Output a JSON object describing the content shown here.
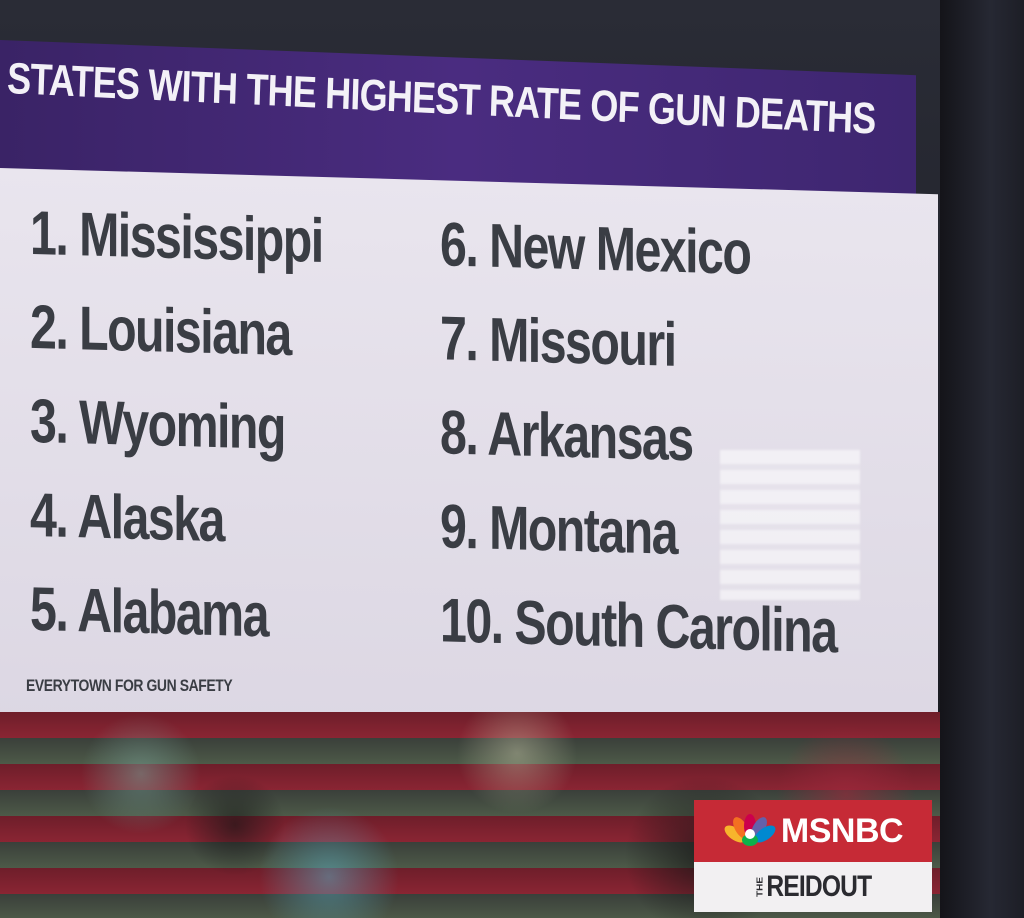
{
  "title": "STATES WITH THE HIGHEST RATE OF GUN DEATHS",
  "list_left": [
    "1. Mississippi",
    "2. Louisiana",
    "3. Wyoming",
    "4. Alaska",
    "5. Alabama"
  ],
  "list_right": [
    "6. New Mexico",
    "7. Missouri",
    "8. Arkansas",
    "9. Montana",
    "10. South Carolina"
  ],
  "source": "EVERYTOWN FOR GUN SAFETY",
  "logo": {
    "brand": "MSNBC",
    "show_prefix": "THE",
    "show_name": "REIDOUT"
  },
  "colors": {
    "header": "#4a2c80",
    "panel": "#e9e5ee",
    "text": "#3a3d44",
    "logo_red": "#c62a36"
  }
}
